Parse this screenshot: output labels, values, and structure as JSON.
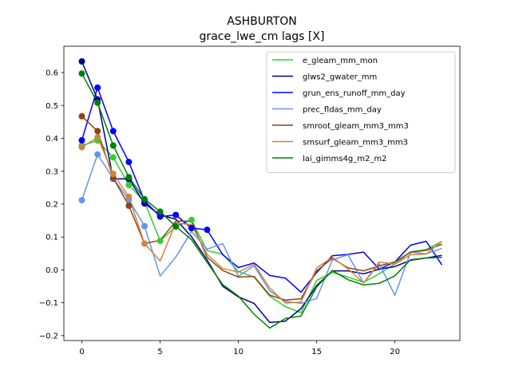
{
  "chart_data": {
    "type": "line",
    "title": "ASHBURTON",
    "subtitle": "grace_lwe_cm lags [X]",
    "xlabel": "",
    "ylabel": "",
    "xlim": [
      -1.15,
      24.15
    ],
    "ylim": [
      -0.215,
      0.68
    ],
    "xticks": [
      0,
      5,
      10,
      15,
      20
    ],
    "yticks": [
      -0.2,
      -0.1,
      0.0,
      0.1,
      0.2,
      0.3,
      0.4,
      0.5,
      0.6
    ],
    "legend_position": "top-right",
    "x": [
      0,
      1,
      2,
      3,
      4,
      5,
      6,
      7,
      8,
      9,
      10,
      11,
      12,
      13,
      14,
      15,
      16,
      17,
      18,
      19,
      20,
      21,
      22,
      23
    ],
    "series": [
      {
        "name": "e_gleam_mm_mon",
        "color": "#32cd32",
        "marker_count": 8,
        "values": [
          0.378,
          0.393,
          0.342,
          0.258,
          0.207,
          0.088,
          0.132,
          0.152,
          0.058,
          0.048,
          -0.005,
          -0.022,
          -0.08,
          -0.112,
          -0.13,
          -0.032,
          -0.008,
          -0.022,
          -0.038,
          -0.012,
          0.018,
          0.055,
          0.062,
          0.087
        ]
      },
      {
        "name": "glws2_gwater_mm",
        "color": "#00008b",
        "marker_count": 6,
        "values": [
          0.634,
          0.518,
          0.277,
          0.277,
          0.202,
          0.167,
          0.154,
          0.101,
          0.03,
          -0.05,
          -0.082,
          -0.102,
          -0.16,
          -0.156,
          -0.118,
          -0.048,
          -0.003,
          -0.003,
          -0.012,
          0.002,
          0.01,
          0.029,
          0.036,
          0.044
        ]
      },
      {
        "name": "grun_ens_runoff_mm_day",
        "color": "#0000ff",
        "marker_count": 9,
        "values": [
          0.394,
          0.554,
          0.422,
          0.328,
          0.21,
          0.162,
          0.167,
          0.127,
          0.122,
          0.046,
          0.007,
          0.021,
          -0.017,
          -0.025,
          -0.068,
          -0.008,
          0.043,
          0.047,
          0.054,
          0.002,
          0.024,
          0.075,
          0.087,
          0.015
        ]
      },
      {
        "name": "prec_fldas_mm_day",
        "color": "#6495ed",
        "marker_count": 5,
        "values": [
          0.212,
          0.351,
          0.278,
          0.213,
          0.133,
          -0.019,
          0.039,
          0.117,
          0.063,
          0.08,
          -0.02,
          0.012,
          -0.064,
          -0.096,
          -0.102,
          -0.087,
          0.03,
          0.046,
          -0.04,
          0.018,
          -0.077,
          0.054,
          0.049,
          0.065
        ]
      },
      {
        "name": "smroot_gleam_mm3_mm3",
        "color": "#8b4513",
        "marker_count": 4,
        "values": [
          0.467,
          0.422,
          0.28,
          0.195,
          0.08,
          0.09,
          0.148,
          0.148,
          0.038,
          -0.002,
          -0.022,
          -0.02,
          -0.077,
          -0.092,
          -0.088,
          -0.003,
          0.035,
          0.006,
          -0.003,
          0.012,
          0.024,
          0.054,
          0.059,
          0.078
        ]
      },
      {
        "name": "smsurf_gleam_mm3_mm3",
        "color": "#cd853f",
        "marker_count": 5,
        "values": [
          0.373,
          0.403,
          0.292,
          0.222,
          0.08,
          0.027,
          0.143,
          0.137,
          0.047,
          0.004,
          -0.007,
          0.017,
          -0.055,
          -0.101,
          -0.098,
          0.006,
          0.038,
          0.003,
          -0.04,
          0.024,
          0.017,
          0.046,
          0.048,
          0.087
        ]
      },
      {
        "name": "lai_gimms4g_m2_m2",
        "color": "#008000",
        "marker_count": 7,
        "values": [
          0.597,
          0.508,
          0.378,
          0.282,
          0.215,
          0.177,
          0.132,
          0.092,
          0.023,
          -0.045,
          -0.08,
          -0.135,
          -0.177,
          -0.148,
          -0.14,
          -0.052,
          -0.002,
          -0.03,
          -0.046,
          -0.041,
          -0.018,
          0.031,
          0.036,
          0.038
        ]
      }
    ]
  }
}
